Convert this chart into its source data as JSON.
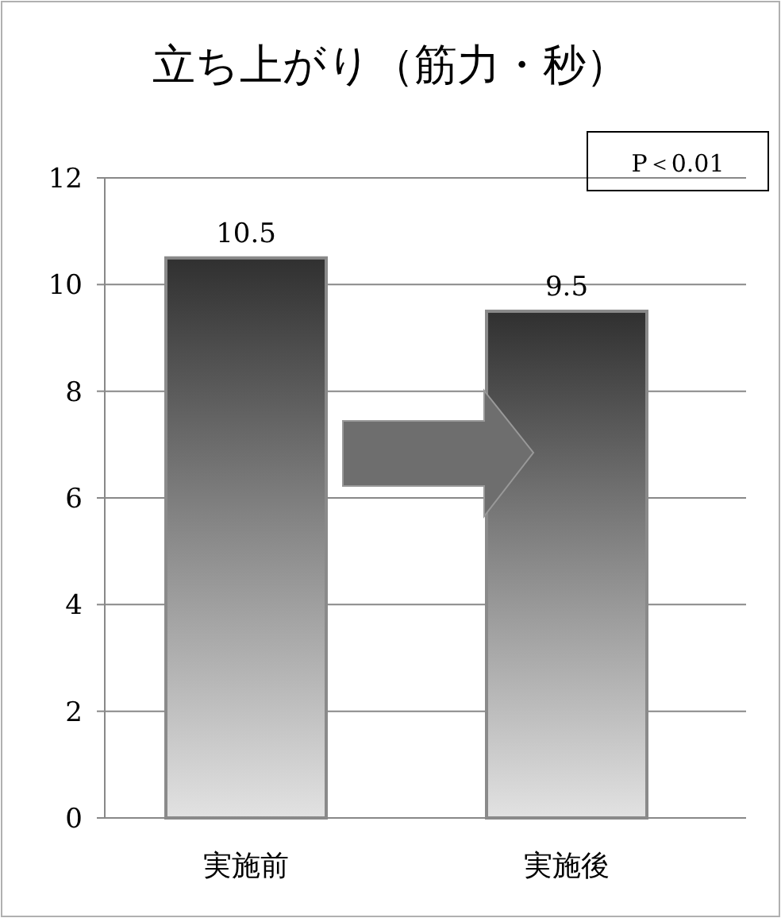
{
  "chart_data": {
    "type": "bar",
    "title": "立ち上がり（筋力・秒）",
    "categories": [
      "実施前",
      "実施後"
    ],
    "values": [
      10.5,
      9.5
    ],
    "color": "#8a8a8a",
    "ylim": [
      0,
      12
    ],
    "yticks": [
      0,
      2,
      4,
      6,
      8,
      10,
      12
    ],
    "grid": "y",
    "data_labels": true,
    "annotations": [
      "P＜0.01"
    ]
  }
}
